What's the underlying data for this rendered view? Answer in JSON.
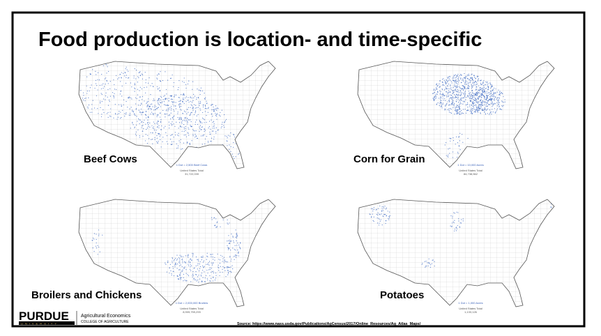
{
  "title": "Food production is location- and time-specific",
  "maps": [
    {
      "label": "Beef Cows",
      "legend": "1 Dot = 2,500 Beef Cows",
      "total_label": "United States Total",
      "total": "31,722,039"
    },
    {
      "label": "Corn for Grain",
      "legend": "1 Dot = 10,000 Acres",
      "total_label": "United States Total",
      "total": "84,738,562"
    },
    {
      "label": "Broilers and Chickens",
      "legend": "1 Dot = 2,000,000 Broilers",
      "total_label": "United States Total",
      "total": "8,909,759,293"
    },
    {
      "label": "Potatoes",
      "legend": "1 Dot = 1,000 Acres",
      "total_label": "United States Total",
      "total": "1,133,126"
    }
  ],
  "logo": {
    "name": "PURDUE",
    "sub": "UNIVERSITY",
    "dept": "Agricultural Economics",
    "college": "COLLEGE OF AGRICULTURE"
  },
  "source": "Source: https://www.nass.usda.gov/Publications/AgCensus/2017/Online_Resources/Ag_Atlas_Maps/"
}
